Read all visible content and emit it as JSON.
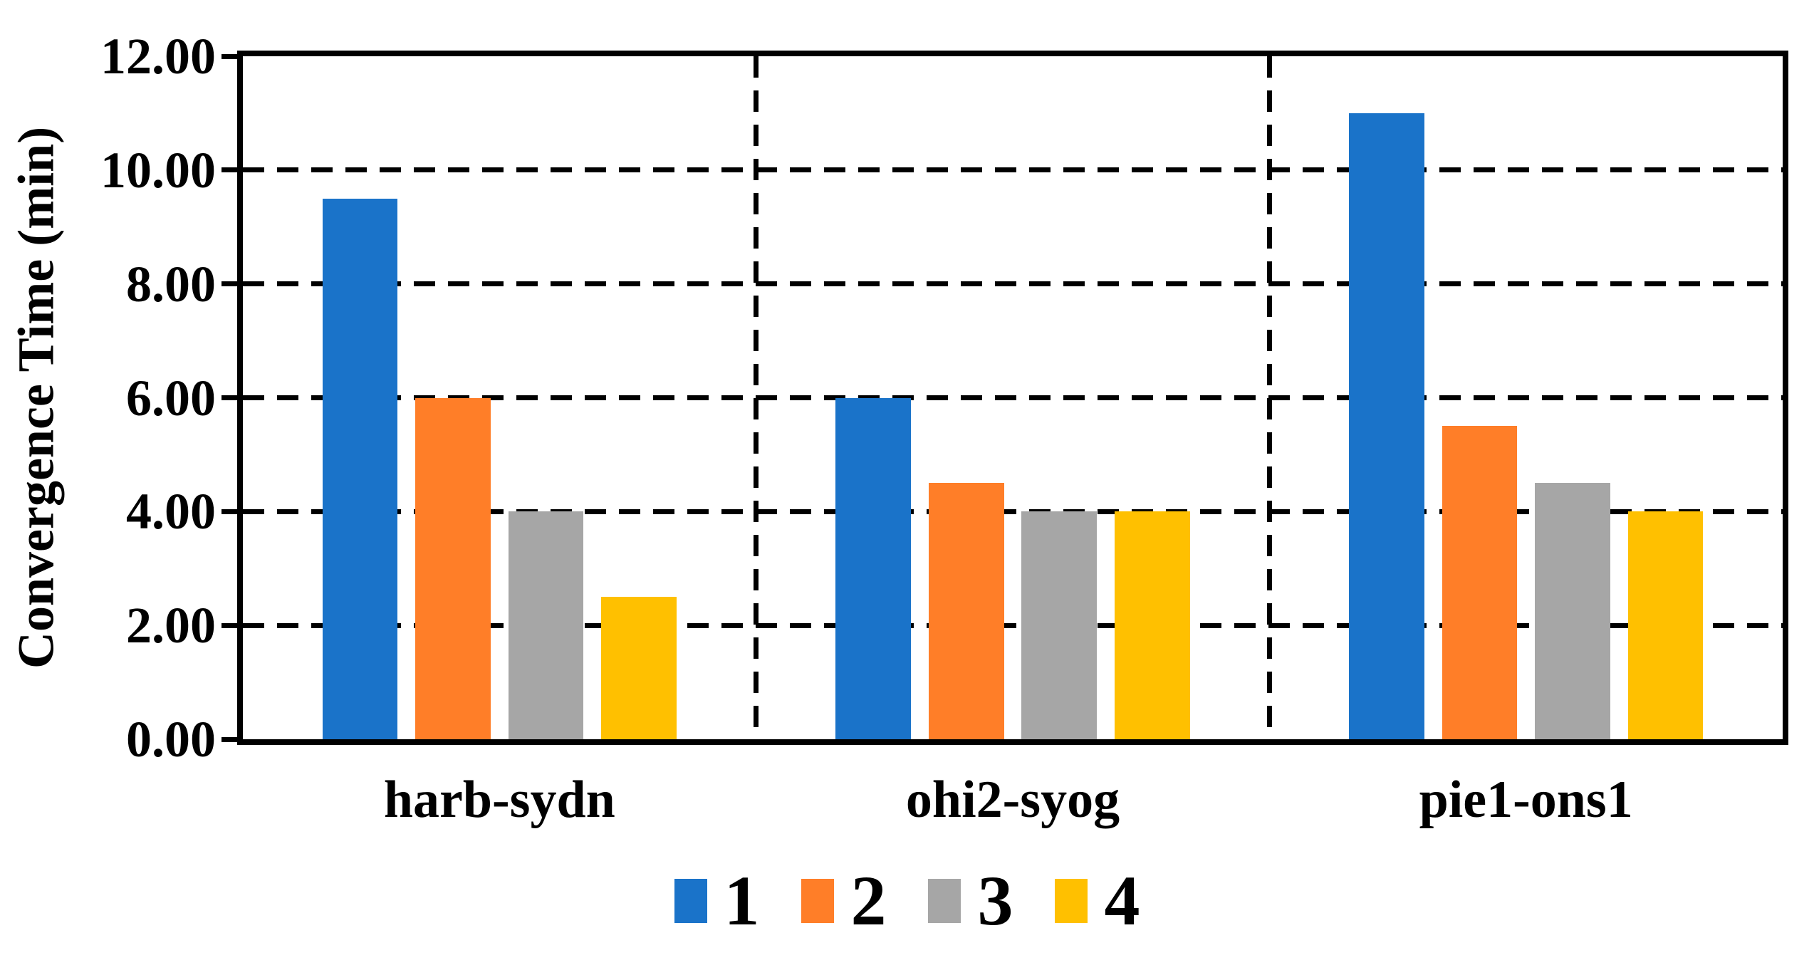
{
  "chart_data": {
    "type": "bar",
    "title": "",
    "ylabel": "Convergence Time (min)",
    "xlabel": "",
    "categories": [
      "harb-sydn",
      "ohi2-syog",
      "pie1-ons1"
    ],
    "series": [
      {
        "name": "1",
        "color": "#1A73C9",
        "values": [
          9.5,
          6.0,
          11.0
        ]
      },
      {
        "name": "2",
        "color": "#FF7E28",
        "values": [
          6.0,
          4.5,
          5.5
        ]
      },
      {
        "name": "3",
        "color": "#A6A6A6",
        "values": [
          4.0,
          4.0,
          4.5
        ]
      },
      {
        "name": "4",
        "color": "#FFC000",
        "values": [
          2.5,
          4.0,
          4.0
        ]
      }
    ],
    "ylim": [
      0,
      12
    ],
    "ytick_step": 2,
    "ytick_labels": [
      "0.00",
      "2.00",
      "4.00",
      "6.00",
      "8.00",
      "10.00",
      "12.00"
    ],
    "grid": "horizontal dashed gridlines at each 2.00; dashed vertical separators between category groups",
    "legend_position": "bottom",
    "legend_entries": [
      "1",
      "2",
      "3",
      "4"
    ],
    "colors": {
      "axis": "#000000",
      "background": "#FFFFFF"
    }
  }
}
